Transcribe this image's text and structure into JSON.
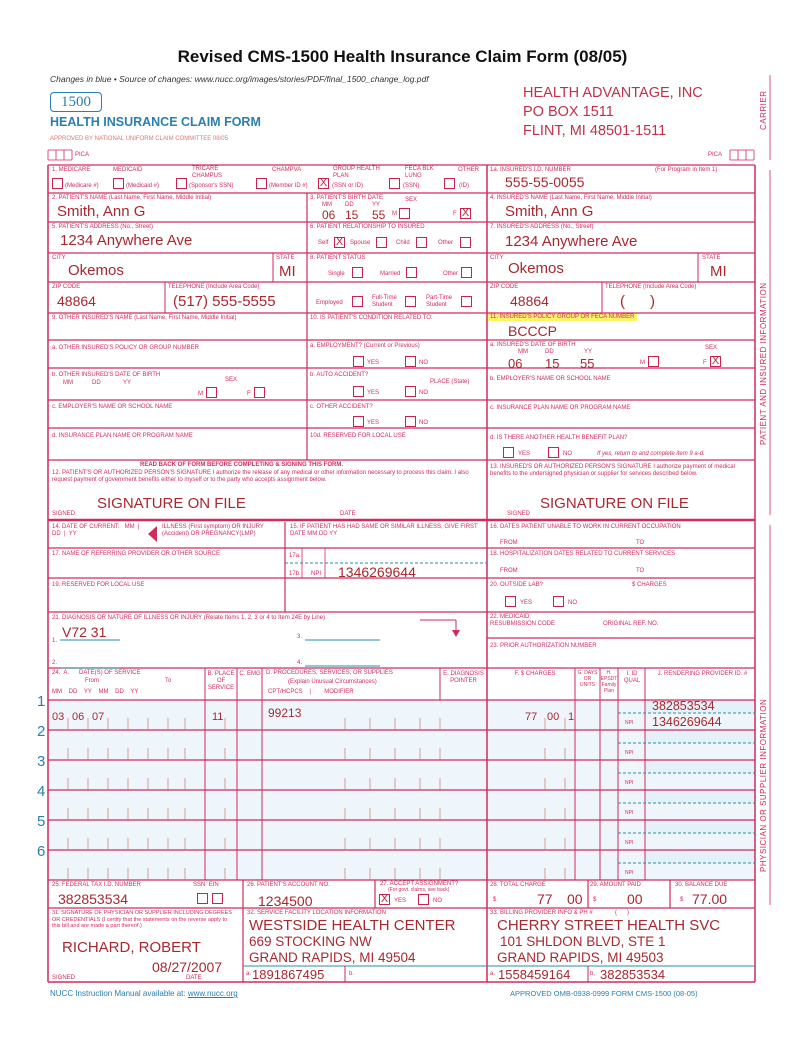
{
  "header": {
    "title": "Revised CMS-1500 Health Insurance Claim Form (08/05)",
    "changes": "Changes in blue  •  Source of changes: www.nucc.org/images/stories/PDF/final_1500_change_log.pdf",
    "form_number": "1500",
    "form_title": "HEALTH INSURANCE CLAIM FORM",
    "approved": "APPROVED BY NATIONAL UNIFORM CLAIM COMMITTEE 08/05",
    "pica": "PICA"
  },
  "carrier": {
    "name": "HEALTH ADVANTAGE, INC",
    "address1": "PO BOX 1511",
    "address2": "FLINT, MI  48501-1511"
  },
  "side_labels": {
    "carrier": "CARRIER",
    "patient": "PATIENT AND INSURED INFORMATION",
    "physician": "PHYSICIAN OR SUPPLIER INFORMATION"
  },
  "colors": {
    "form_lines": "#d22a5c",
    "fill_text": "#a8282f",
    "blue": "#2a7fb0",
    "highlight": "#fff36a"
  },
  "item1": {
    "medicare": "1.  MEDICARE",
    "medicaid": "MEDICAID",
    "tricare": "TRICARE CHAMPUS",
    "champva": "CHAMPVA",
    "group": "GROUP HEALTH PLAN",
    "feca": "FECA BLK LUNG",
    "other": "OTHER",
    "medicare_sub": "(Medicare #)",
    "medicaid_sub": "(Medicaid #)",
    "tricare_sub": "(Sponsor's SSN)",
    "champva_sub": "(Member ID #)",
    "group_sub": "(SSN or ID)",
    "feca_sub": "(SSN)",
    "other_sub": "(ID)",
    "checked": "group"
  },
  "item1a": {
    "label": "1a. INSURED'S I.D. NUMBER",
    "note": "(For Program in Item 1)",
    "value": "555-55-0055"
  },
  "item2": {
    "label": "2. PATIENT'S NAME (Last Name, First Name, Middle Initial)",
    "value": "Smith, Ann G"
  },
  "item3": {
    "label": "3. PATIENT'S BIRTH DATE",
    "mm": "MM",
    "dd": "DD",
    "yy": "YY",
    "sex": "SEX",
    "m": "M",
    "f": "F",
    "month": "06",
    "day": "15",
    "year": "55",
    "sex_checked": "F"
  },
  "item4": {
    "label": "4. INSURED'S NAME (Last Name, First Name, Middle Initial)",
    "value": "Smith, Ann G"
  },
  "item5": {
    "label": "5. PATIENT'S ADDRESS (No., Street)",
    "value": "1234 Anywhere Ave",
    "city_label": "CITY",
    "city": "Okemos",
    "state_label": "STATE",
    "state": "MI",
    "zip_label": "ZIP CODE",
    "zip": "48864",
    "phone_label": "TELEPHONE (Include Area Code)",
    "phone": "(517) 555-5555"
  },
  "item6": {
    "label": "6. PATIENT RELATIONSHIP TO INSURED",
    "self": "Self",
    "spouse": "Spouse",
    "child": "Child",
    "other": "Other",
    "checked": "self"
  },
  "item7": {
    "label": "7. INSURED'S ADDRESS (No., Street)",
    "value": "1234 Anywhere Ave",
    "city_label": "CITY",
    "city": "Okemos",
    "state_label": "STATE",
    "state": "MI",
    "zip_label": "ZIP CODE",
    "zip": "48864",
    "phone_label": "TELEPHONE (Include Area Code)",
    "phone": "(      )"
  },
  "item8": {
    "label": "8. PATIENT STATUS",
    "single": "Single",
    "married": "Married",
    "other": "Other",
    "employed": "Employed",
    "fulltime": "Full-Time Student",
    "parttime": "Part-Time Student"
  },
  "item9": {
    "label": "9. OTHER INSURED'S NAME (Last Name, First Name, Middle Initial)",
    "a": "a. OTHER INSURED'S POLICY OR GROUP NUMBER",
    "b": "b. OTHER INSURED'S DATE OF BIRTH",
    "b_mm": "MM",
    "b_dd": "DD",
    "b_yy": "YY",
    "b_sex": "SEX",
    "m": "M",
    "f": "F",
    "c": "c. EMPLOYER'S NAME OR SCHOOL NAME",
    "d": "d. INSURANCE PLAN NAME OR PROGRAM NAME"
  },
  "item10": {
    "label": "10. IS PATIENT'S CONDITION RELATED TO:",
    "a": "a. EMPLOYMENT? (Current or Previous)",
    "b": "b. AUTO ACCIDENT?",
    "place": "PLACE (State)",
    "c": "c. OTHER ACCIDENT?",
    "d": "10d. RESERVED FOR LOCAL USE",
    "yes": "YES",
    "no": "NO"
  },
  "item11": {
    "label": "11. INSURED'S POLICY GROUP OR FECA NUMBER",
    "value": "BCCCP",
    "a": "a. INSURED'S DATE OF BIRTH",
    "mm": "MM",
    "dd": "DD",
    "yy": "YY",
    "sex": "SEX",
    "m": "M",
    "f": "F",
    "month": "06",
    "day": "15",
    "year": "55",
    "sex_checked": "F",
    "b": "b. EMPLOYER'S NAME OR SCHOOL NAME",
    "c": "c. INSURANCE PLAN NAME OR PROGRAM NAME",
    "d": "d. IS THERE ANOTHER HEALTH BENEFIT PLAN?",
    "yes": "YES",
    "no": "NO",
    "d_note": "If yes, return to and complete item 9 a-d."
  },
  "item12": {
    "header": "READ BACK OF FORM BEFORE COMPLETING & SIGNING THIS FORM.",
    "label": "12. PATIENT'S OR AUTHORIZED PERSON'S SIGNATURE  I authorize the release of any medical or other information necessary to process this claim. I also request payment of government benefits either to myself or to the party who accepts assignment below.",
    "signed": "SIGNED",
    "date": "DATE",
    "value": "SIGNATURE ON FILE"
  },
  "item13": {
    "label": "13. INSURED'S OR AUTHORIZED PERSON'S SIGNATURE I authorize payment of medical benefits to the undersigned physician or supplier for services described below.",
    "signed": "SIGNED",
    "value": "SIGNATURE ON FILE"
  },
  "item14": {
    "label": "14. DATE OF CURRENT:   MM  |  DD  |  YY",
    "illness": "ILLNESS (First symptom) OR INJURY (Accident) OR PREGNANCY(LMP)"
  },
  "item15": {
    "label": "15. IF PATIENT HAS HAD SAME OR SIMILAR ILLNESS, GIVE FIRST DATE   MM   DD   YY"
  },
  "item16": {
    "label": "16. DATES PATIENT UNABLE TO WORK IN CURRENT OCCUPATION",
    "from": "FROM",
    "to": "TO"
  },
  "item17": {
    "label": "17. NAME OF REFERRING PROVIDER OR OTHER SOURCE",
    "a": "17a.",
    "b": "17b.",
    "npi": "NPI",
    "value": "1346269644"
  },
  "item18": {
    "label": "18. HOSPITALIZATION DATES RELATED TO CURRENT SERVICES",
    "from": "FROM",
    "to": "TO"
  },
  "item19": {
    "label": "19. RESERVED FOR LOCAL USE"
  },
  "item20": {
    "label": "20. OUTSIDE LAB?",
    "charges": "$ CHARGES",
    "yes": "YES",
    "no": "NO"
  },
  "item21": {
    "label": "21. DIAGNOSIS OR NATURE OF ILLNESS OR INJURY (Relate Items 1, 2, 3 or 4 to Item 24E by Line)",
    "n1": "1.",
    "n2": "2.",
    "n3": "3.",
    "n4": "4.",
    "dx1": "V72 31"
  },
  "item22": {
    "label": "22. MEDICAID RESUBMISSION CODE",
    "orig": "ORIGINAL REF. NO."
  },
  "item23": {
    "label": "23. PRIOR AUTHORIZATION NUMBER"
  },
  "item24": {
    "a": "24.  A.      DATE(S) OF SERVICE",
    "from": "From",
    "to": "To",
    "cols": "MM    DD    YY    MM    DD    YY",
    "b": "B. PLACE OF SERVICE",
    "c": "C. EMG",
    "d": "D. PROCEDURES, SERVICES, OR SUPPLIES",
    "d_sub": "(Explain Unusual Circumstances)",
    "d_cols": "CPT/HCPCS    |        MODIFIER",
    "e": "E. DIAGNOSIS POINTER",
    "f": "F.   $ CHARGES",
    "g": "G. DAYS OR UNITS",
    "h": "H. EPSDT Family Plan",
    "i": "I. ID QUAL",
    "j": "J. RENDERING PROVIDER ID. #",
    "npi": "NPI",
    "lines": [
      {
        "num": "1",
        "from_mm": "03",
        "from_dd": "06",
        "from_yy": "07",
        "pos": "11",
        "cpt": "99213",
        "charge_dollars": "77",
        "charge_cents": "00",
        "units": "1",
        "provider_id": "382853534",
        "npi": "1346269644"
      },
      {
        "num": "2"
      },
      {
        "num": "3"
      },
      {
        "num": "4"
      },
      {
        "num": "5"
      },
      {
        "num": "6"
      }
    ]
  },
  "item25": {
    "label": "25. FEDERAL TAX I.D. NUMBER",
    "ssn_ein": "SSN  EIN",
    "value": "382853534"
  },
  "item26": {
    "label": "26. PATIENT'S ACCOUNT NO.",
    "value": "1234500"
  },
  "item27": {
    "label": "27. ACCEPT ASSIGNMENT?",
    "sub": "(For govt. claims, see back)",
    "yes": "YES",
    "no": "NO",
    "checked": "yes"
  },
  "item28": {
    "label": "28. TOTAL CHARGE",
    "dollar": "$",
    "dollars": "77",
    "cents": "00"
  },
  "item29": {
    "label": "29. AMOUNT PAID",
    "dollar": "$",
    "value": "00"
  },
  "item30": {
    "label": "30. BALANCE DUE",
    "dollar": "$",
    "value": "77.00"
  },
  "item31": {
    "label": "31. SIGNATURE OF PHYSICIAN OR SUPPLIER INCLUDING DEGREES OR CREDENTIALS (I certify that the statements on the reverse apply to this bill and are made a part thereof.)",
    "name": "RICHARD, ROBERT",
    "date_value": "08/27/2007",
    "signed": "SIGNED",
    "date": "DATE"
  },
  "item32": {
    "label": "32. SERVICE FACILITY LOCATION INFORMATION",
    "line1": "WESTSIDE HEALTH CENTER",
    "line2": "669 STOCKING NW",
    "line3": "GRAND RAPIDS, MI  49504",
    "a": "a.",
    "a_value": "1891867495",
    "b": "b."
  },
  "item33": {
    "label": "33. BILLING PROVIDER INFO & PH #",
    "phone": "(      )",
    "line1": "CHERRY STREET HEALTH SVC",
    "line2": "101 SHLDON BLVD, STE 1",
    "line3": "GRAND RAPIDS, MI  49503",
    "a": "a.",
    "a_value": "1558459164",
    "b": "b.",
    "b_value": "382853534"
  },
  "footer": {
    "left_prefix": "NUCC Instruction Manual available at: ",
    "link": "www.nucc.org",
    "right": "APPROVED OMB-0938-0999 FORM CMS-1500 (08-05)"
  }
}
